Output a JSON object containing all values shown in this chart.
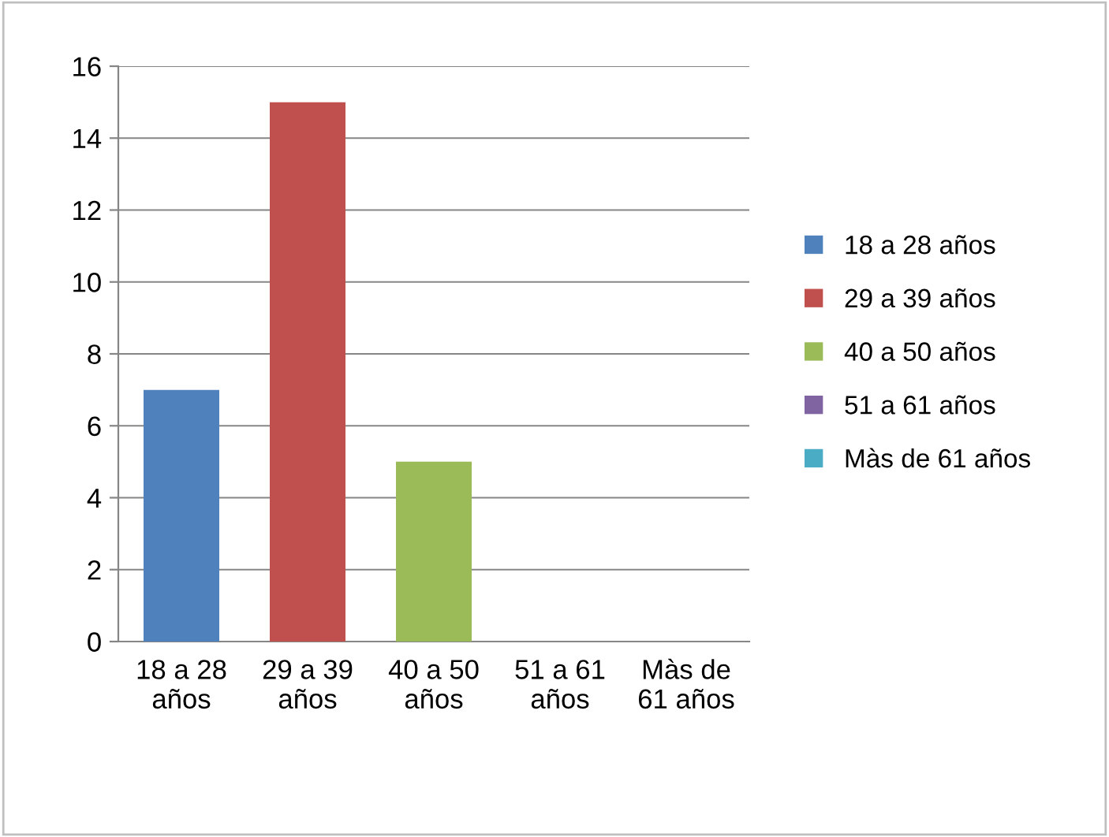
{
  "chart_data": {
    "type": "bar",
    "categories": [
      "18 a 28 años",
      "29 a 39 años",
      "40 a 50 años",
      "51 a 61 años",
      "Màs de 61 años"
    ],
    "series": [
      {
        "name": "18 a 28 años",
        "color": "#4f81bd",
        "values": [
          7,
          null,
          null,
          null,
          null
        ]
      },
      {
        "name": "29 a 39 años",
        "color": "#c0504d",
        "values": [
          null,
          15,
          null,
          null,
          null
        ]
      },
      {
        "name": "40 a 50 años",
        "color": "#9bbb59",
        "values": [
          null,
          null,
          5,
          null,
          null
        ]
      },
      {
        "name": "51 a 61 años",
        "color": "#8064a2",
        "values": [
          null,
          null,
          null,
          0,
          null
        ]
      },
      {
        "name": "Màs de 61 años",
        "color": "#4bacc6",
        "values": [
          null,
          null,
          null,
          null,
          0
        ]
      }
    ],
    "stacked": true,
    "ylim": [
      0,
      16
    ],
    "yticks": [
      0,
      2,
      4,
      6,
      8,
      10,
      12,
      14,
      16
    ],
    "grid": "y",
    "legend": "right"
  }
}
